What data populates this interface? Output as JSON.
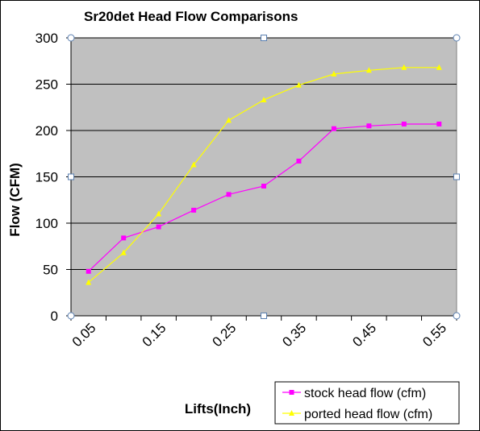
{
  "chart_data": {
    "type": "line",
    "title": "Sr20det Head Flow Comparisons",
    "xlabel": "Lifts(Inch)",
    "ylabel": "Flow (CFM)",
    "x": [
      0.05,
      0.1,
      0.15,
      0.2,
      0.25,
      0.3,
      0.35,
      0.4,
      0.45,
      0.5,
      0.55
    ],
    "x_tick_labels": [
      "0.05",
      "0.15",
      "0.25",
      "0.35",
      "0.45",
      "0.55"
    ],
    "ylim": [
      0,
      300
    ],
    "y_ticks": [
      0,
      50,
      100,
      150,
      200,
      250,
      300
    ],
    "grid": "horizontal",
    "plot_background": "#C0C0C0",
    "legend_position": "bottom-right",
    "series": [
      {
        "name": "stock head flow (cfm)",
        "color": "#FF00FF",
        "marker": "square",
        "values": [
          48,
          84,
          96,
          114,
          131,
          140,
          167,
          202,
          205,
          207,
          207
        ]
      },
      {
        "name": "ported head flow (cfm)",
        "color": "#FFFF00",
        "marker": "triangle",
        "values": [
          36,
          68,
          110,
          163,
          211,
          233,
          249,
          261,
          265,
          268,
          268
        ]
      }
    ]
  }
}
